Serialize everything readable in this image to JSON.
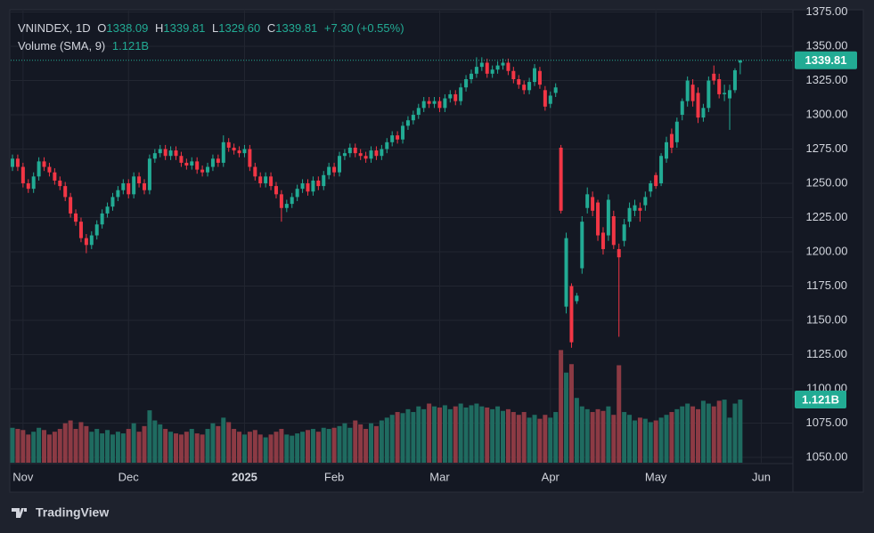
{
  "chart_data": {
    "type": "candlestick",
    "legend": {
      "symbol": "VNINDEX, 1D",
      "items": [
        {
          "key": "O",
          "value": "1338.09"
        },
        {
          "key": "H",
          "value": "1339.81"
        },
        {
          "key": "L",
          "value": "1329.60"
        },
        {
          "key": "C",
          "value": "1339.81"
        }
      ],
      "change": "+7.30 (+0.55%)"
    },
    "study": "Volume (SMA, 9)",
    "volume_label": "1.121B",
    "logo": "TradingView",
    "up_color": "#22ab94",
    "down_color": "#f23645",
    "volume_up_color": "#1f6b60",
    "volume_down_color": "#8c3a44",
    "grid": true,
    "xlim": [
      -0.34,
      147.99
    ],
    "xticks": [
      {
        "value": 2,
        "label": "Nov"
      },
      {
        "value": 22,
        "label": "Dec"
      },
      {
        "value": 44,
        "label": "2025"
      },
      {
        "value": 61,
        "label": "Feb"
      },
      {
        "value": 81,
        "label": "Mar"
      },
      {
        "value": 102,
        "label": "Apr"
      },
      {
        "value": 122,
        "label": "May"
      },
      {
        "value": 142,
        "label": "Jun"
      }
    ],
    "ylim": [
      1046.1,
      1376
    ],
    "yticks": [
      {
        "value": 1050,
        "label": "1050.00"
      },
      {
        "value": 1075,
        "label": "1075.00"
      },
      {
        "value": 1100,
        "label": "1100.00"
      },
      {
        "value": 1125,
        "label": "1125.00"
      },
      {
        "value": 1150,
        "label": "1150.00"
      },
      {
        "value": 1175,
        "label": "1175.00"
      },
      {
        "value": 1200,
        "label": "1200.00"
      },
      {
        "value": 1225,
        "label": "1225.00"
      },
      {
        "value": 1250,
        "label": "1250.00"
      },
      {
        "value": 1275,
        "label": "1275.00"
      },
      {
        "value": 1300,
        "label": "1300.00"
      },
      {
        "value": 1325,
        "label": "1325.00"
      },
      {
        "value": 1350,
        "label": "1350.00"
      },
      {
        "value": 1375,
        "label": "1375.00"
      }
    ],
    "open": [
      1262,
      1268,
      1262,
      1250,
      1246,
      1255,
      1266,
      1262,
      1258,
      1252,
      1248,
      1240,
      1228,
      1222,
      1210,
      1205,
      1212,
      1220,
      1228,
      1233,
      1240,
      1245,
      1250,
      1242,
      1255,
      1250,
      1245,
      1268,
      1272,
      1275,
      1270,
      1274,
      1270,
      1265,
      1263,
      1266,
      1260,
      1258,
      1262,
      1268,
      1265,
      1280,
      1276,
      1274,
      1272,
      1275,
      1262,
      1255,
      1250,
      1255,
      1248,
      1242,
      1232,
      1235,
      1240,
      1246,
      1250,
      1244,
      1252,
      1248,
      1256,
      1262,
      1258,
      1270,
      1272,
      1276,
      1272,
      1270,
      1268,
      1274,
      1270,
      1275,
      1280,
      1285,
      1282,
      1292,
      1296,
      1300,
      1305,
      1310,
      1308,
      1310,
      1305,
      1312,
      1315,
      1310,
      1320,
      1326,
      1330,
      1335,
      1338,
      1330,
      1333,
      1336,
      1338,
      1332,
      1326,
      1322,
      1318,
      1324,
      1332,
      1318,
      1308,
      1316,
      1276,
      1160,
      1175,
      1164,
      1188,
      1232,
      1240,
      1236,
      1214,
      1212,
      1226,
      1202,
      1208,
      1222,
      1230,
      1232,
      1234,
      1244,
      1256,
      1250,
      1268,
      1286,
      1280,
      1300,
      1310,
      1322,
      1316,
      1298,
      1305,
      1330,
      1326,
      1315,
      1312,
      1318,
      1338.09
    ],
    "high": [
      1271,
      1271,
      1265,
      1253,
      1258,
      1269,
      1269,
      1265,
      1261,
      1255,
      1251,
      1243,
      1231,
      1225,
      1213,
      1215,
      1223,
      1231,
      1236,
      1243,
      1248,
      1253,
      1253,
      1258,
      1258,
      1253,
      1271,
      1275,
      1278,
      1278,
      1277,
      1277,
      1273,
      1268,
      1269,
      1269,
      1263,
      1265,
      1271,
      1271,
      1285,
      1283,
      1279,
      1277,
      1278,
      1278,
      1265,
      1258,
      1258,
      1258,
      1251,
      1245,
      1238,
      1243,
      1249,
      1253,
      1253,
      1255,
      1255,
      1259,
      1265,
      1265,
      1273,
      1275,
      1279,
      1279,
      1275,
      1273,
      1277,
      1277,
      1278,
      1283,
      1288,
      1288,
      1295,
      1299,
      1303,
      1308,
      1313,
      1313,
      1313,
      1313,
      1315,
      1318,
      1318,
      1323,
      1329,
      1333,
      1342,
      1342,
      1341,
      1336,
      1339,
      1341,
      1341,
      1335,
      1329,
      1325,
      1327,
      1337,
      1335,
      1321,
      1317,
      1323,
      1278,
      1214,
      1177,
      1170,
      1226,
      1247,
      1244,
      1238,
      1218,
      1242,
      1230,
      1206,
      1224,
      1236,
      1238,
      1236,
      1244,
      1252,
      1258,
      1272,
      1284,
      1290,
      1298,
      1312,
      1328,
      1326,
      1320,
      1308,
      1328,
      1336,
      1330,
      1322,
      1322,
      1334,
      1339.81
    ],
    "low": [
      1259,
      1259,
      1247,
      1243,
      1243,
      1252,
      1259,
      1255,
      1249,
      1245,
      1237,
      1225,
      1219,
      1207,
      1199,
      1202,
      1209,
      1217,
      1225,
      1230,
      1237,
      1242,
      1239,
      1239,
      1247,
      1242,
      1242,
      1265,
      1269,
      1267,
      1267,
      1267,
      1262,
      1260,
      1260,
      1257,
      1255,
      1255,
      1259,
      1262,
      1262,
      1273,
      1271,
      1269,
      1269,
      1259,
      1252,
      1247,
      1247,
      1245,
      1239,
      1222,
      1229,
      1232,
      1237,
      1243,
      1241,
      1241,
      1245,
      1245,
      1253,
      1255,
      1255,
      1267,
      1269,
      1269,
      1267,
      1265,
      1265,
      1267,
      1267,
      1272,
      1277,
      1279,
      1279,
      1289,
      1293,
      1297,
      1302,
      1305,
      1305,
      1302,
      1302,
      1309,
      1307,
      1307,
      1317,
      1323,
      1327,
      1332,
      1327,
      1327,
      1330,
      1333,
      1329,
      1323,
      1319,
      1315,
      1315,
      1321,
      1319,
      1303,
      1305,
      1313,
      1228,
      1155,
      1130,
      1162,
      1184,
      1228,
      1226,
      1208,
      1198,
      1208,
      1202,
      1138,
      1204,
      1218,
      1226,
      1222,
      1230,
      1240,
      1246,
      1248,
      1265,
      1272,
      1276,
      1296,
      1306,
      1306,
      1294,
      1295,
      1302,
      1322,
      1312,
      1310,
      1289,
      1316,
      1329.6
    ],
    "close": [
      1268,
      1262,
      1250,
      1246,
      1255,
      1266,
      1262,
      1258,
      1252,
      1248,
      1240,
      1228,
      1222,
      1210,
      1205,
      1212,
      1220,
      1228,
      1233,
      1240,
      1245,
      1250,
      1242,
      1255,
      1250,
      1245,
      1268,
      1272,
      1275,
      1270,
      1274,
      1270,
      1265,
      1263,
      1266,
      1260,
      1258,
      1262,
      1268,
      1265,
      1280,
      1276,
      1274,
      1272,
      1275,
      1262,
      1255,
      1250,
      1255,
      1248,
      1242,
      1232,
      1235,
      1240,
      1246,
      1250,
      1244,
      1252,
      1248,
      1256,
      1262,
      1258,
      1270,
      1272,
      1276,
      1272,
      1270,
      1268,
      1274,
      1270,
      1275,
      1280,
      1285,
      1282,
      1292,
      1296,
      1300,
      1305,
      1310,
      1308,
      1310,
      1305,
      1312,
      1315,
      1310,
      1320,
      1326,
      1330,
      1335,
      1338,
      1330,
      1333,
      1336,
      1338,
      1332,
      1326,
      1322,
      1318,
      1324,
      1334,
      1322,
      1306,
      1314,
      1320,
      1230,
      1210,
      1134,
      1168,
      1222,
      1242,
      1230,
      1212,
      1202,
      1238,
      1205,
      1196,
      1220,
      1232,
      1234,
      1230,
      1240,
      1250,
      1248,
      1270,
      1280,
      1276,
      1295,
      1310,
      1325,
      1310,
      1298,
      1305,
      1325,
      1325,
      1315,
      1316,
      1318,
      1332.51,
      1339.81
    ],
    "volume": [
      0.62,
      0.6,
      0.58,
      0.5,
      0.55,
      0.62,
      0.58,
      0.5,
      0.55,
      0.6,
      0.7,
      0.75,
      0.6,
      0.72,
      0.65,
      0.55,
      0.6,
      0.52,
      0.58,
      0.5,
      0.55,
      0.52,
      0.6,
      0.7,
      0.55,
      0.65,
      0.93,
      0.75,
      0.68,
      0.6,
      0.55,
      0.52,
      0.5,
      0.55,
      0.6,
      0.52,
      0.5,
      0.6,
      0.7,
      0.65,
      0.8,
      0.72,
      0.6,
      0.55,
      0.5,
      0.55,
      0.58,
      0.5,
      0.45,
      0.5,
      0.55,
      0.6,
      0.5,
      0.48,
      0.52,
      0.55,
      0.58,
      0.6,
      0.55,
      0.62,
      0.6,
      0.62,
      0.65,
      0.7,
      0.62,
      0.75,
      0.68,
      0.6,
      0.7,
      0.65,
      0.75,
      0.8,
      0.85,
      0.9,
      0.88,
      0.95,
      0.9,
      1.0,
      0.95,
      1.05,
      1.0,
      0.98,
      1.02,
      0.95,
      1.0,
      1.05,
      0.98,
      1.02,
      1.05,
      1.0,
      0.98,
      0.95,
      1.0,
      0.92,
      0.95,
      0.9,
      0.85,
      0.9,
      0.8,
      0.85,
      0.78,
      0.85,
      0.8,
      0.9,
      2.0,
      1.6,
      1.75,
      1.15,
      1.0,
      0.95,
      0.9,
      0.95,
      0.92,
      1.0,
      0.85,
      1.73,
      0.9,
      0.85,
      0.75,
      0.8,
      0.78,
      0.72,
      0.75,
      0.8,
      0.85,
      0.9,
      0.95,
      1.0,
      1.05,
      1.0,
      0.95,
      1.1,
      1.05,
      1.0,
      1.1,
      1.12,
      0.8,
      1.05,
      1.121
    ]
  }
}
